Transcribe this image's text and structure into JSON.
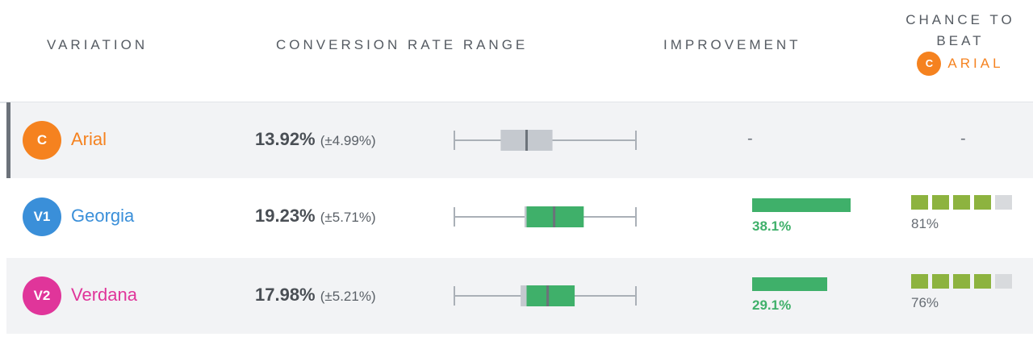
{
  "header": {
    "variation": "VARIATION",
    "range": "CONVERSION RATE RANGE",
    "improvement": "IMPROVEMENT",
    "chance_line1": "CHANCE TO",
    "chance_line2": "BEAT",
    "baseline_badge": "C",
    "baseline_name": "ARIAL",
    "baseline_color": "#f5821f"
  },
  "chart_data": {
    "type": "table",
    "range_axis": {
      "min": 0,
      "max": 35
    },
    "rows": [
      {
        "badge": "C",
        "badge_color": "#f5821f",
        "name": "Arial",
        "rate": "13.92%",
        "margin": "(±4.99%)",
        "rate_value": 13.92,
        "margin_value": 4.99,
        "improvement": "-",
        "improvement_value": null,
        "chance": "-",
        "chance_value": null
      },
      {
        "badge": "V1",
        "badge_color": "#3a8fd9",
        "name": "Georgia",
        "rate": "19.23%",
        "margin": "(±5.71%)",
        "rate_value": 19.23,
        "margin_value": 5.71,
        "improvement": "38.1%",
        "improvement_value": 38.1,
        "chance": "81%",
        "chance_value": 81
      },
      {
        "badge": "V2",
        "badge_color": "#e0359a",
        "name": "Verdana",
        "rate": "17.98%",
        "margin": "(±5.21%)",
        "rate_value": 17.98,
        "margin_value": 5.21,
        "improvement": "29.1%",
        "improvement_value": 29.1,
        "chance": "76%",
        "chance_value": 76
      }
    ]
  },
  "colors": {
    "box_gray": "#c5c9cf",
    "box_green": "#3fb06a",
    "median_line": "#6c727a",
    "whisker": "#aab0b7",
    "chance_on": "#8db33f",
    "chance_off": "#d8dadd"
  }
}
